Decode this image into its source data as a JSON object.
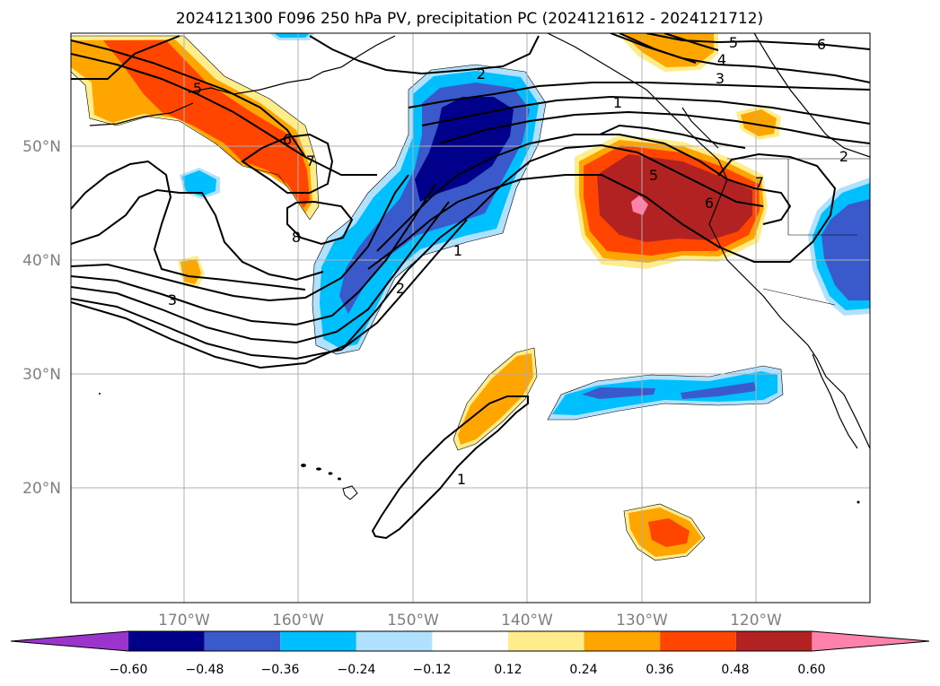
{
  "title": "2024121300 F096 250 hPa PV, precipitation PC (2024121612 - 2024121712)",
  "axes": {
    "lat_labels": [
      "50°N",
      "40°N",
      "30°N",
      "20°N"
    ],
    "lon_labels": [
      "170°W",
      "160°W",
      "150°W",
      "140°W",
      "130°W",
      "120°W"
    ]
  },
  "contour_labels": [
    "5",
    "6",
    "7",
    "8",
    "3",
    "2",
    "1",
    "2",
    "1",
    "5",
    "4",
    "3",
    "6",
    "5",
    "6",
    "7",
    "2",
    "1"
  ],
  "colorbar": {
    "ticks": [
      "−0.60",
      "−0.48",
      "−0.36",
      "−0.24",
      "−0.12",
      "0.12",
      "0.24",
      "0.36",
      "0.48",
      "0.60"
    ],
    "colors": [
      "#9a34cc",
      "#00008b",
      "#3a5acc",
      "#00bfff",
      "#b0e2ff",
      "#ffffff",
      "#ffec8b",
      "#ffa500",
      "#ff4500",
      "#b22222",
      "#ff82ab"
    ]
  },
  "colors": {
    "grid": "#b0b0b0",
    "contour": "#000000",
    "coast": "#000000"
  }
}
